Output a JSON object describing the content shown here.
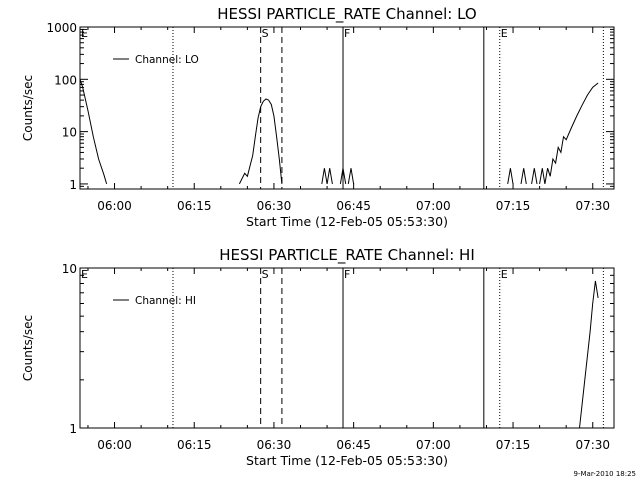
{
  "footer": {
    "timestamp": "9-Mar-2010 18:25"
  },
  "chart_data": [
    {
      "type": "line",
      "title": "HESSI PARTICLE_RATE Channel: LO",
      "xlabel": "Start Time (12-Feb-05 05:53:30)",
      "ylabel": "Counts/sec",
      "yscale": "log",
      "xlim": [
        "05:53:30",
        "07:34:00"
      ],
      "ylim": [
        0.8,
        1000
      ],
      "x_ticks": [
        "06:00",
        "06:15",
        "06:30",
        "06:45",
        "07:00",
        "07:15",
        "07:30"
      ],
      "y_ticks": [
        "1",
        "10",
        "100",
        "1000"
      ],
      "legend": {
        "position": "top-left",
        "entries": [
          "Channel: LO"
        ]
      },
      "markers": [
        {
          "label": "E",
          "time": "05:53:30",
          "style": "none"
        },
        {
          "label": "",
          "time": "06:11:00",
          "style": "dotted"
        },
        {
          "label": "S",
          "time": "06:27:30",
          "style": "dashed"
        },
        {
          "label": "",
          "time": "06:31:30",
          "style": "dashed"
        },
        {
          "label": "F",
          "time": "06:43:00",
          "style": "solid"
        },
        {
          "label": "",
          "time": "07:09:30",
          "style": "solid"
        },
        {
          "label": "E",
          "time": "07:12:30",
          "style": "dotted"
        },
        {
          "label": "",
          "time": "07:32:00",
          "style": "dotted"
        }
      ],
      "series": [
        {
          "name": "Channel: LO",
          "segments": [
            [
              [
                "05:53:30",
                100
              ],
              [
                "05:54:00",
                70
              ],
              [
                "05:55:00",
                25
              ],
              [
                "05:56:00",
                8
              ],
              [
                "05:57:00",
                3
              ],
              [
                "05:58:00",
                1.5
              ],
              [
                "05:58:30",
                1
              ]
            ],
            [
              [
                "06:23:30",
                1
              ],
              [
                "06:24:30",
                1.6
              ],
              [
                "06:25:00",
                1.4
              ],
              [
                "06:25:30",
                2.2
              ],
              [
                "06:26:00",
                3.5
              ],
              [
                "06:26:30",
                8
              ],
              [
                "06:27:00",
                18
              ],
              [
                "06:27:30",
                30
              ],
              [
                "06:28:00",
                38
              ],
              [
                "06:28:30",
                42
              ],
              [
                "06:29:00",
                40
              ],
              [
                "06:29:30",
                33
              ],
              [
                "06:30:00",
                20
              ],
              [
                "06:30:30",
                8
              ],
              [
                "06:31:00",
                3
              ],
              [
                "06:31:30",
                1
              ]
            ],
            [
              [
                "06:39:00",
                1
              ],
              [
                "06:39:30",
                2
              ],
              [
                "06:40:00",
                1
              ]
            ],
            [
              [
                "06:40:00",
                1
              ],
              [
                "06:40:30",
                2
              ],
              [
                "06:41:00",
                1
              ]
            ],
            [
              [
                "06:42:30",
                1
              ],
              [
                "06:43:00",
                2
              ],
              [
                "06:43:30",
                1
              ]
            ],
            [
              [
                "06:44:00",
                1
              ],
              [
                "06:44:30",
                2
              ],
              [
                "06:45:00",
                1
              ]
            ],
            [
              [
                "07:14:00",
                1
              ],
              [
                "07:14:30",
                2
              ],
              [
                "07:15:00",
                1
              ]
            ],
            [
              [
                "07:16:30",
                1
              ],
              [
                "07:17:00",
                2
              ],
              [
                "07:17:30",
                1
              ]
            ],
            [
              [
                "07:18:30",
                1
              ],
              [
                "07:19:00",
                2
              ],
              [
                "07:19:30",
                1
              ]
            ],
            [
              [
                "07:20:00",
                1
              ],
              [
                "07:20:30",
                2
              ],
              [
                "07:21:00",
                1
              ],
              [
                "07:21:30",
                2
              ],
              [
                "07:22:00",
                1.4
              ],
              [
                "07:22:30",
                3
              ],
              [
                "07:23:00",
                2.5
              ],
              [
                "07:23:30",
                5
              ],
              [
                "07:24:00",
                4
              ],
              [
                "07:24:30",
                8
              ],
              [
                "07:25:00",
                7
              ],
              [
                "07:26:00",
                12
              ],
              [
                "07:27:00",
                20
              ],
              [
                "07:28:00",
                32
              ],
              [
                "07:29:00",
                50
              ],
              [
                "07:30:00",
                70
              ],
              [
                "07:31:00",
                85
              ]
            ]
          ]
        }
      ]
    },
    {
      "type": "line",
      "title": "HESSI PARTICLE_RATE Channel: HI",
      "xlabel": "Start Time (12-Feb-05 05:53:30)",
      "ylabel": "Counts/sec",
      "yscale": "log",
      "xlim": [
        "05:53:30",
        "07:34:00"
      ],
      "ylim": [
        1,
        10
      ],
      "x_ticks": [
        "06:00",
        "06:15",
        "06:30",
        "06:45",
        "07:00",
        "07:15",
        "07:30"
      ],
      "y_ticks": [
        "1",
        "10"
      ],
      "legend": {
        "position": "top-left",
        "entries": [
          "Channel: HI"
        ]
      },
      "markers": [
        {
          "label": "E",
          "time": "05:53:30",
          "style": "none"
        },
        {
          "label": "",
          "time": "06:11:00",
          "style": "dotted"
        },
        {
          "label": "S",
          "time": "06:27:30",
          "style": "dashed"
        },
        {
          "label": "",
          "time": "06:31:30",
          "style": "dashed"
        },
        {
          "label": "F",
          "time": "06:43:00",
          "style": "solid"
        },
        {
          "label": "",
          "time": "07:09:30",
          "style": "solid"
        },
        {
          "label": "E",
          "time": "07:12:30",
          "style": "dotted"
        },
        {
          "label": "",
          "time": "07:32:00",
          "style": "dotted"
        }
      ],
      "series": [
        {
          "name": "Channel: HI",
          "segments": [
            [
              [
                "07:27:30",
                1
              ],
              [
                "07:28:30",
                2
              ],
              [
                "07:29:30",
                4
              ],
              [
                "07:30:00",
                6
              ],
              [
                "07:30:30",
                8.3
              ],
              [
                "07:31:00",
                6.5
              ]
            ]
          ]
        }
      ]
    }
  ]
}
